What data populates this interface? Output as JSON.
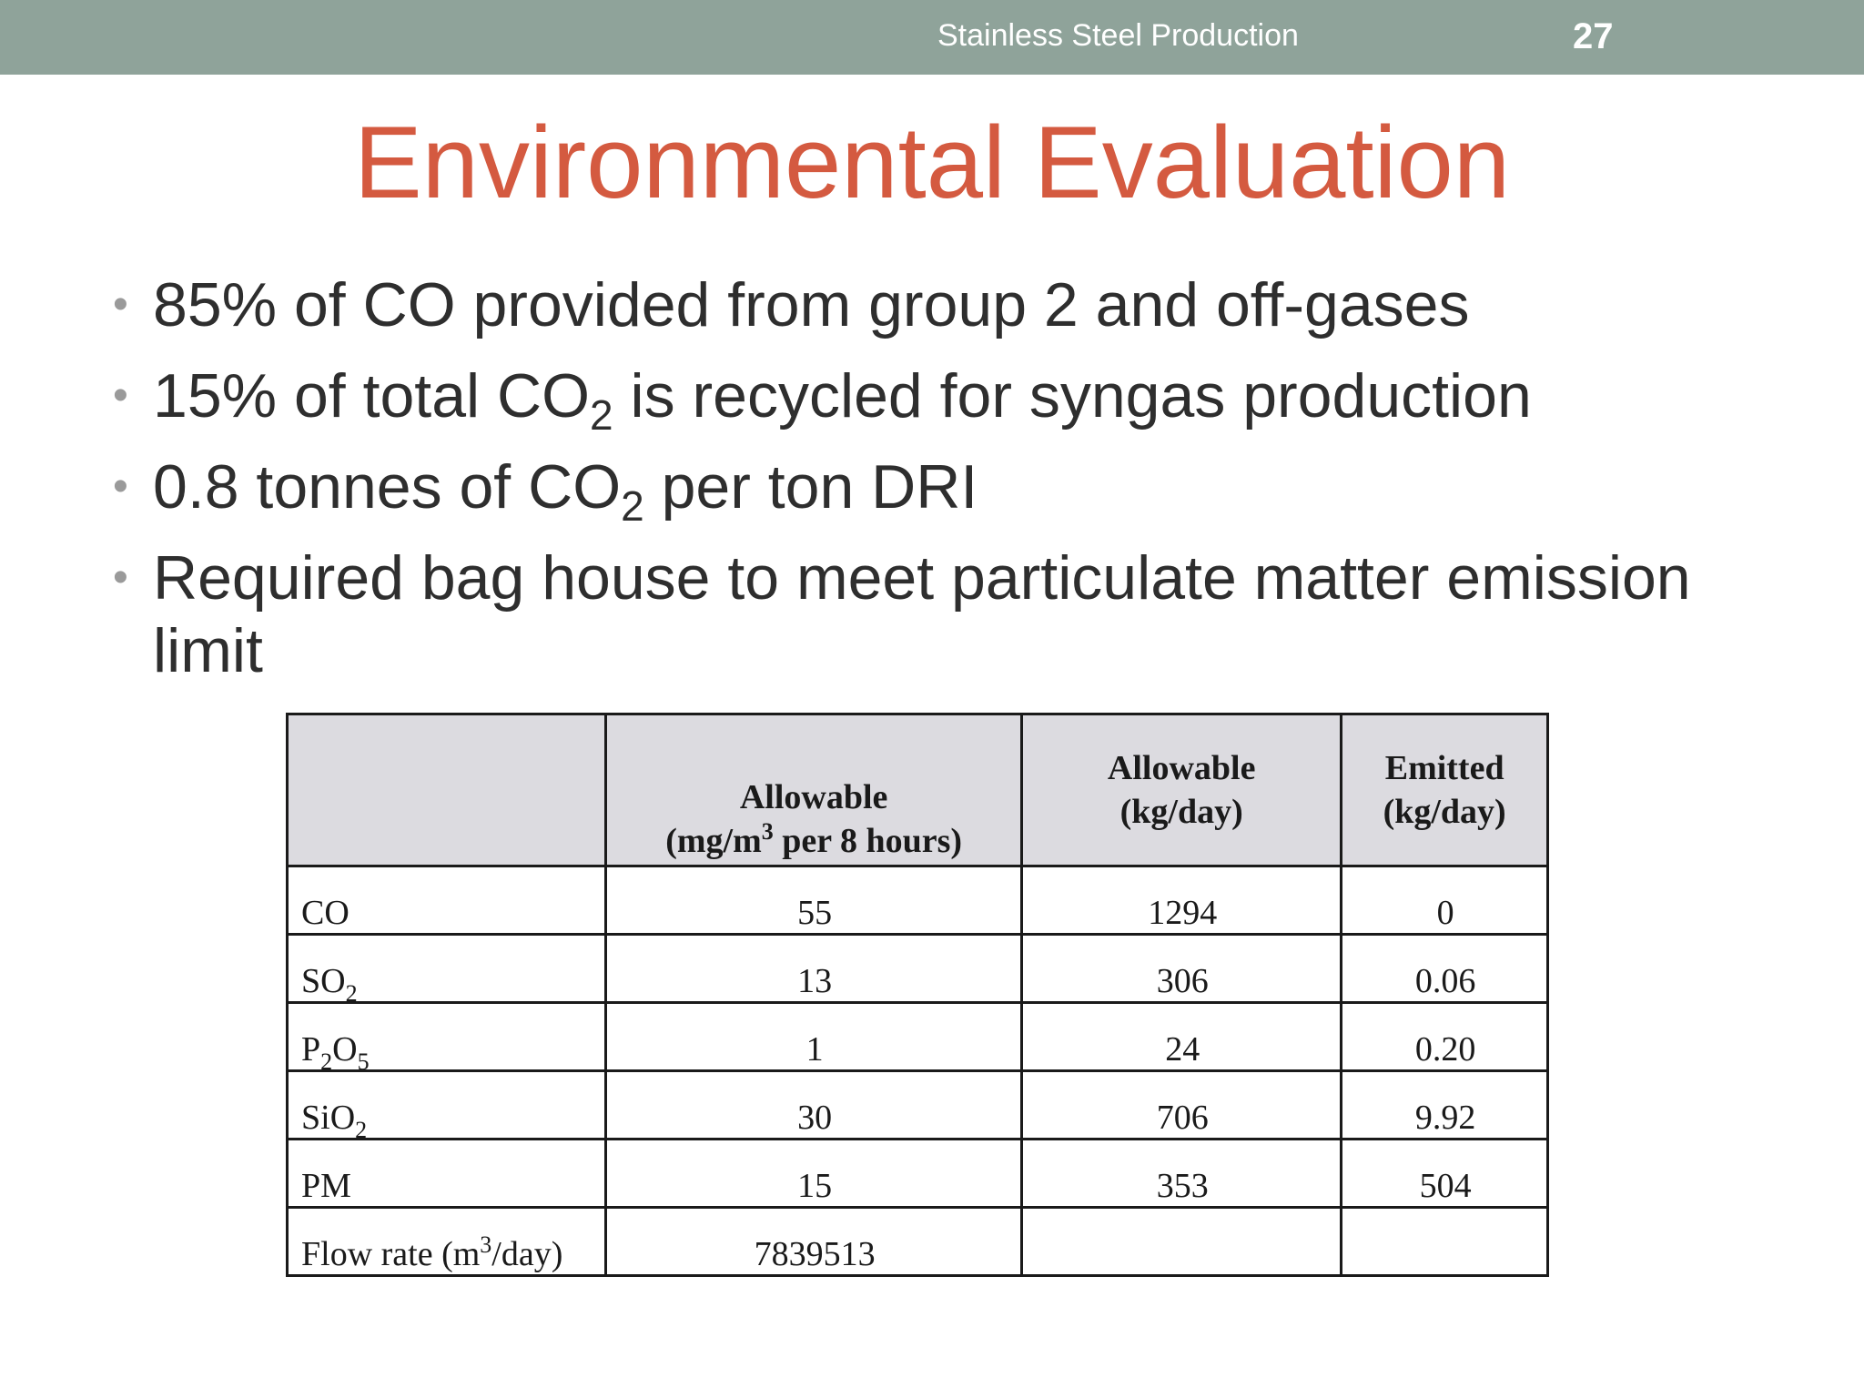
{
  "header": {
    "title": "Stainless Steel Production",
    "page_number": "27"
  },
  "slide": {
    "title": "Environmental Evaluation",
    "bullets": [
      {
        "pre": "85% of CO provided from group 2 and off-gases",
        "sub": "",
        "post": ""
      },
      {
        "pre": "15% of total CO",
        "sub": "2",
        "post": " is recycled for syngas production"
      },
      {
        "pre": "0.8 tonnes of CO",
        "sub": "2",
        "post": " per ton DRI"
      },
      {
        "pre": "Required bag house to meet particulate matter emission limit",
        "sub": "",
        "post": ""
      }
    ]
  },
  "table": {
    "headers": {
      "col1_line1": "Allowable",
      "col1_line2_pre": "(mg/m",
      "col1_line2_sup": "3",
      "col1_line2_post": " per 8 hours)",
      "col2_line1": "Allowable",
      "col2_line2": "(kg/day)",
      "col3_line1": "Emitted",
      "col3_line2": "(kg/day)"
    },
    "rows": [
      {
        "name_pre": "CO",
        "name_sub": "",
        "name_mid": "",
        "name_sub2": "",
        "allow_mg": "55",
        "allow_kg": "1294",
        "emitted": "0"
      },
      {
        "name_pre": "SO",
        "name_sub": "2",
        "name_mid": "",
        "name_sub2": "",
        "allow_mg": "13",
        "allow_kg": "306",
        "emitted": "0.06"
      },
      {
        "name_pre": "P",
        "name_sub": "2",
        "name_mid": "O",
        "name_sub2": "5",
        "allow_mg": "1",
        "allow_kg": "24",
        "emitted": "0.20"
      },
      {
        "name_pre": "SiO",
        "name_sub": "2",
        "name_mid": "",
        "name_sub2": "",
        "allow_mg": "30",
        "allow_kg": "706",
        "emitted": "9.92"
      },
      {
        "name_pre": "PM",
        "name_sub": "",
        "name_mid": "",
        "name_sub2": "",
        "allow_mg": "15",
        "allow_kg": "353",
        "emitted": "504"
      }
    ],
    "flow": {
      "label_pre": "Flow rate (m",
      "label_sup": "3",
      "label_post": "/day)",
      "value": "7839513"
    }
  }
}
